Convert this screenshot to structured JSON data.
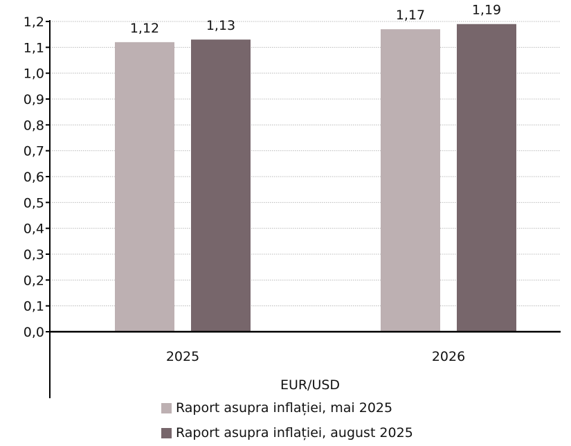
{
  "chart_data": {
    "type": "bar",
    "categories": [
      "2025",
      "2026"
    ],
    "group_title": "EUR/USD",
    "series": [
      {
        "name": "Raport asupra inflației, mai 2025",
        "values": [
          1.12,
          1.17
        ],
        "labels": [
          "1,12",
          "1,17"
        ],
        "color": "#bdb0b2"
      },
      {
        "name": "Raport asupra inflației, august 2025",
        "values": [
          1.13,
          1.19
        ],
        "labels": [
          "1,13",
          "1,19"
        ],
        "color": "#77666b"
      }
    ],
    "ylim": [
      0,
      1.2
    ],
    "yticks": [
      0.0,
      0.1,
      0.2,
      0.3,
      0.4,
      0.5,
      0.6,
      0.7,
      0.8,
      0.9,
      1.0,
      1.1,
      1.2
    ],
    "ytick_labels": [
      "0,0",
      "0,1",
      "0,2",
      "0,3",
      "0,4",
      "0,5",
      "0,6",
      "0,7",
      "0,8",
      "0,9",
      "1,0",
      "1,1",
      "1,2"
    ],
    "grid": true,
    "legend_position": "bottom",
    "title": "",
    "xlabel": "",
    "ylabel": ""
  }
}
